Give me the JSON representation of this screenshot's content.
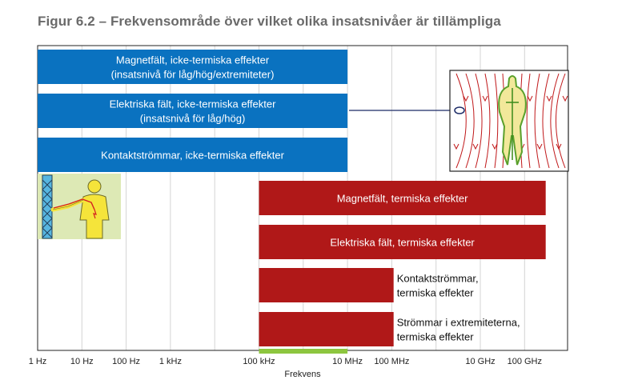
{
  "title": "Figur 6.2 – Frekvensområde över vilket olika insatsnivåer är tillämpliga",
  "axis": {
    "label": "Frekvens",
    "ticks": [
      "1 Hz",
      "10 Hz",
      "100 Hz",
      "1 kHz",
      "100 kHz",
      "10 MHz",
      "100 MHz",
      "10 GHz",
      "100 GHz"
    ]
  },
  "bars_non_thermal": [
    {
      "lines": [
        "Magnetfält, icke-termiska effekter",
        "(insatsnivå för låg/hög/extremiteter)"
      ],
      "range": [
        "1 Hz",
        "10 MHz"
      ]
    },
    {
      "lines": [
        "Elektriska fält, icke-termiska effekter",
        "(insatsnivå för låg/hög)"
      ],
      "range": [
        "1 Hz",
        "10 MHz"
      ]
    },
    {
      "lines": [
        "Kontaktströmmar, icke-termiska effekter"
      ],
      "range": [
        "1 Hz",
        "10 MHz"
      ]
    }
  ],
  "bars_thermal": [
    {
      "lines": [
        "Magnetfält, termiska effekter"
      ],
      "range": [
        "100 kHz",
        "300 GHz"
      ]
    },
    {
      "lines": [
        "Elektriska fält, termiska effekter"
      ],
      "range": [
        "100 kHz",
        "300 GHz"
      ]
    },
    {
      "lines": [
        "Kontaktströmmar,",
        "termiska effekter"
      ],
      "range": [
        "100 kHz",
        "110 MHz"
      ]
    },
    {
      "lines": [
        "Strömmar i extremiteterna,",
        "termiska effekter"
      ],
      "range": [
        "100 kHz",
        "110 MHz"
      ]
    }
  ],
  "overlap_band": {
    "range": [
      "100 kHz",
      "10 MHz"
    ],
    "color": "#8dc63f"
  },
  "colors": {
    "non_thermal": "#0a72c0",
    "thermal": "#b01818",
    "grid": "#d4d4d4",
    "frame": "#222222",
    "title": "#6a6a6a"
  },
  "images": [
    {
      "icon": "person-touching-fence-icon"
    },
    {
      "icon": "body-in-field-lines-icon"
    }
  ]
}
